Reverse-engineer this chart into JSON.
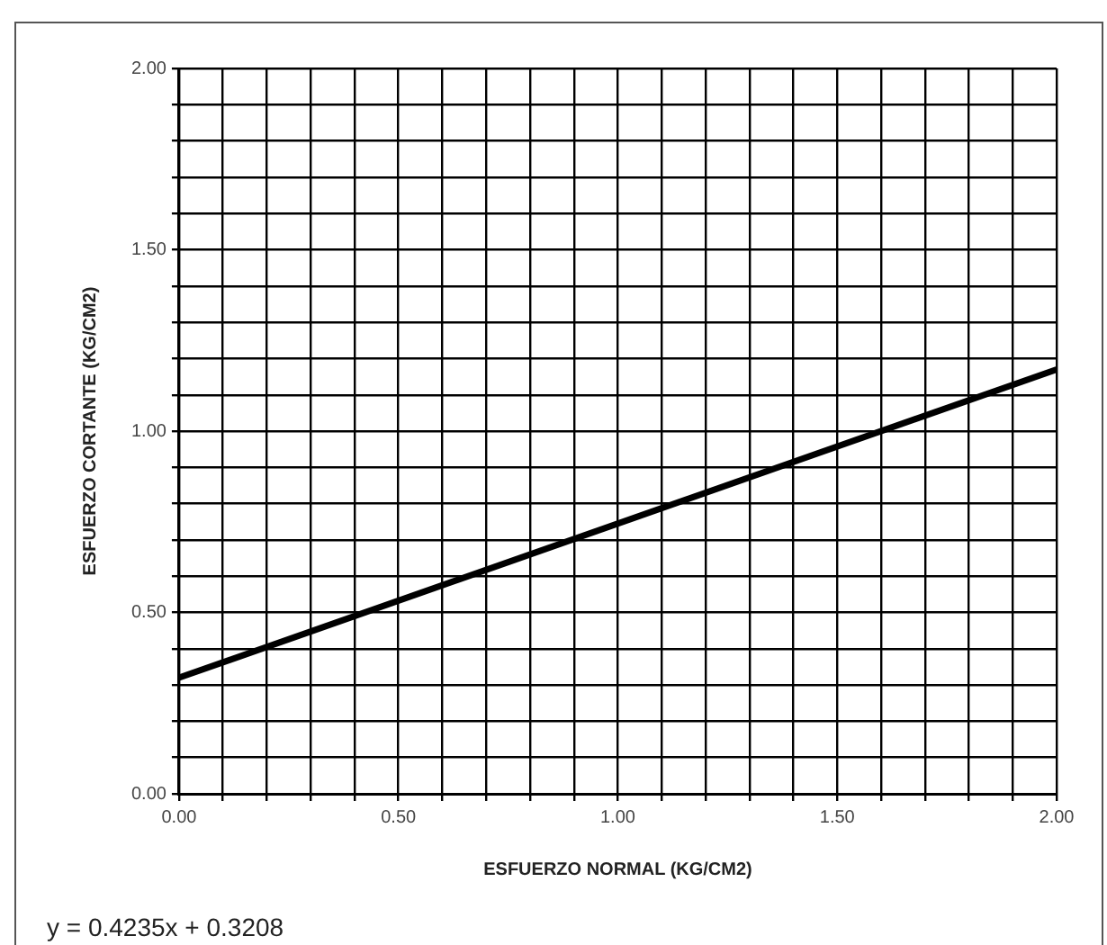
{
  "chart_data": {
    "type": "line",
    "xlabel": "ESFUERZO NORMAL (KG/CM2)",
    "ylabel": "ESFUERZO CORTANTE (KG/CM2)",
    "annotations": [
      "y = 0.4235x + 0.3208"
    ],
    "series": [
      {
        "x": [
          0,
          2
        ],
        "values": [
          0.32,
          1.17
        ],
        "color": "#000000"
      }
    ],
    "xlim": [
      0,
      2
    ],
    "ylim": [
      0,
      2
    ],
    "xticks": [
      {
        "value": 0,
        "label": "0.00"
      },
      {
        "value": 0.1,
        "label": null
      },
      {
        "value": 0.2,
        "label": null
      },
      {
        "value": 0.3,
        "label": null
      },
      {
        "value": 0.4,
        "label": null
      },
      {
        "value": 0.5,
        "label": "0.50"
      },
      {
        "value": 0.6,
        "label": null
      },
      {
        "value": 0.7,
        "label": null
      },
      {
        "value": 0.8,
        "label": null
      },
      {
        "value": 0.9,
        "label": null
      },
      {
        "value": 1,
        "label": "1.00"
      },
      {
        "value": 1.1,
        "label": null
      },
      {
        "value": 1.2,
        "label": null
      },
      {
        "value": 1.3,
        "label": null
      },
      {
        "value": 1.4,
        "label": null
      },
      {
        "value": 1.5,
        "label": "1.50"
      },
      {
        "value": 1.6,
        "label": null
      },
      {
        "value": 1.7,
        "label": null
      },
      {
        "value": 1.8,
        "label": null
      },
      {
        "value": 1.9,
        "label": null
      },
      {
        "value": 2,
        "label": "2.00"
      }
    ],
    "yticks": [
      {
        "value": 0,
        "label": "0.00"
      },
      {
        "value": 0.1,
        "label": null
      },
      {
        "value": 0.2,
        "label": null
      },
      {
        "value": 0.3,
        "label": null
      },
      {
        "value": 0.4,
        "label": null
      },
      {
        "value": 0.5,
        "label": "0.50"
      },
      {
        "value": 0.6,
        "label": null
      },
      {
        "value": 0.7,
        "label": null
      },
      {
        "value": 0.8,
        "label": null
      },
      {
        "value": 0.9,
        "label": null
      },
      {
        "value": 1,
        "label": "1.00"
      },
      {
        "value": 1.1,
        "label": null
      },
      {
        "value": 1.2,
        "label": null
      },
      {
        "value": 1.3,
        "label": null
      },
      {
        "value": 1.4,
        "label": null
      },
      {
        "value": 1.5,
        "label": "1.50"
      },
      {
        "value": 1.6,
        "label": null
      },
      {
        "value": 1.7,
        "label": null
      },
      {
        "value": 1.8,
        "label": null
      },
      {
        "value": 1.9,
        "label": null
      },
      {
        "value": 2,
        "label": "2.00"
      }
    ],
    "grid": true,
    "marker": "none",
    "line_style": "solid",
    "legend": false
  }
}
